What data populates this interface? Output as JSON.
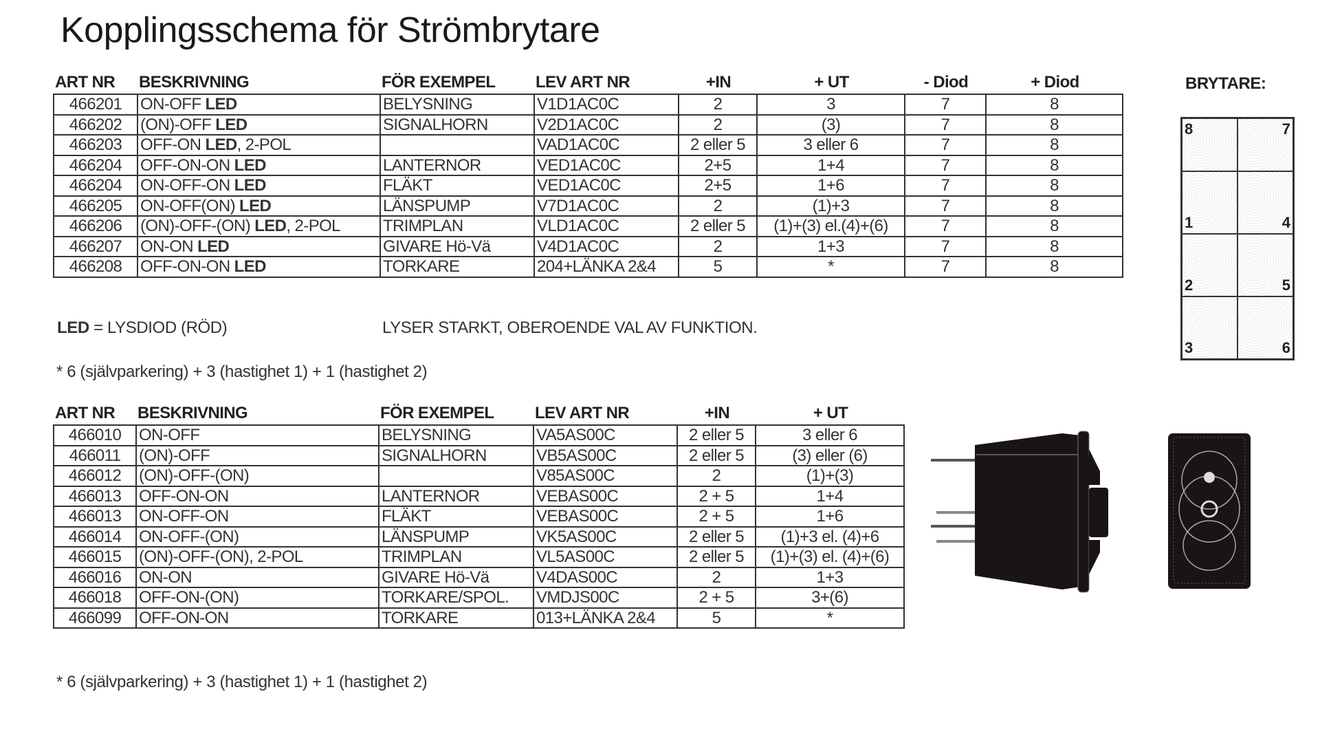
{
  "title": "Kopplingsschema för Strömbrytare",
  "table1": {
    "headers": [
      "ART NR",
      "BESKRIVNING",
      "FÖR EXEMPEL",
      "LEV ART NR",
      "+IN",
      "+ UT",
      "- Diod",
      "+ Diod"
    ],
    "rows": [
      {
        "art": "466201",
        "desc": "ON-OFF ",
        "bold": "LED",
        "suffix": "",
        "ex": "BELYSNING",
        "lev": "V1D1AC0C",
        "in": "2",
        "ut": "3",
        "dminus": "7",
        "dplus": "8"
      },
      {
        "art": "466202",
        "desc": "(ON)-OFF ",
        "bold": "LED",
        "suffix": "",
        "ex": "SIGNALHORN",
        "lev": "V2D1AC0C",
        "in": "2",
        "ut": "(3)",
        "dminus": "7",
        "dplus": "8"
      },
      {
        "art": "466203",
        "desc": "OFF-ON ",
        "bold": "LED",
        "suffix": ", 2-POL",
        "ex": "",
        "lev": "VAD1AC0C",
        "in": "2 eller 5",
        "ut": "3 eller 6",
        "dminus": "7",
        "dplus": "8"
      },
      {
        "art": "466204",
        "desc": "OFF-ON-ON ",
        "bold": "LED",
        "suffix": "",
        "ex": "LANTERNOR",
        "lev": "VED1AC0C",
        "in": "2+5",
        "ut": "1+4",
        "dminus": "7",
        "dplus": "8"
      },
      {
        "art": "466204",
        "desc": "ON-OFF-ON ",
        "bold": "LED",
        "suffix": "",
        "ex": "FLÄKT",
        "lev": "VED1AC0C",
        "in": "2+5",
        "ut": "1+6",
        "dminus": "7",
        "dplus": "8"
      },
      {
        "art": "466205",
        "desc": "ON-OFF(ON) ",
        "bold": "LED",
        "suffix": "",
        "ex": "LÄNSPUMP",
        "lev": "V7D1AC0C",
        "in": "2",
        "ut": "(1)+3",
        "dminus": "7",
        "dplus": "8"
      },
      {
        "art": "466206",
        "desc": "(ON)-OFF-(ON) ",
        "bold": "LED",
        "suffix": ", 2-POL",
        "ex": "TRIMPLAN",
        "lev": "VLD1AC0C",
        "in": "2 eller 5",
        "ut": "(1)+(3) el.(4)+(6)",
        "dminus": "7",
        "dplus": "8"
      },
      {
        "art": "466207",
        "desc": "ON-ON ",
        "bold": "LED",
        "suffix": "",
        "ex": "GIVARE Hö-Vä",
        "lev": "V4D1AC0C",
        "in": "2",
        "ut": "1+3",
        "dminus": "7",
        "dplus": "8"
      },
      {
        "art": "466208",
        "desc": "OFF-ON-ON ",
        "bold": "LED",
        "suffix": "",
        "ex": "TORKARE",
        "lev": "204+LÄNKA 2&4",
        "in": "5",
        "ut": "*",
        "dminus": "7",
        "dplus": "8"
      }
    ]
  },
  "notes": {
    "led_bold": "LED",
    "led_rest": " = LYSDIOD (RÖD)",
    "led_desc": "LYSER STARKT, OBEROENDE VAL AV FUNKTION.",
    "footnote1": "* 6 (självparkering) + 3 (hastighet 1) + 1 (hastighet 2)",
    "footnote2": "* 6 (självparkering) + 3 (hastighet 1) + 1 (hastighet 2)"
  },
  "brytare": {
    "label": "BRYTARE:",
    "pins": [
      [
        "8",
        "7"
      ],
      [
        "1",
        "4"
      ],
      [
        "2",
        "5"
      ],
      [
        "3",
        "6"
      ]
    ]
  },
  "table2": {
    "headers": [
      "ART NR",
      "BESKRIVNING",
      "FÖR EXEMPEL",
      "LEV ART NR",
      "+IN",
      "+ UT"
    ],
    "rows": [
      {
        "art": "466010",
        "desc": "ON-OFF",
        "ex": "BELYSNING",
        "lev": "VA5AS00C",
        "in": "2 eller 5",
        "ut": "3 eller 6"
      },
      {
        "art": "466011",
        "desc": "(ON)-OFF",
        "ex": "SIGNALHORN",
        "lev": "VB5AS00C",
        "in": "2 eller 5",
        "ut": "(3) eller (6)"
      },
      {
        "art": "466012",
        "desc": "(ON)-OFF-(ON)",
        "ex": "",
        "lev": "V85AS00C",
        "in": "2",
        "ut": "(1)+(3)"
      },
      {
        "art": "466013",
        "desc": "OFF-ON-ON",
        "ex": "LANTERNOR",
        "lev": "VEBAS00C",
        "in": "2 + 5",
        "ut": "1+4"
      },
      {
        "art": "466013",
        "desc": "ON-OFF-ON",
        "ex": "FLÄKT",
        "lev": "VEBAS00C",
        "in": "2 + 5",
        "ut": "1+6"
      },
      {
        "art": "466014",
        "desc": "ON-OFF-(ON)",
        "ex": "LÄNSPUMP",
        "lev": "VK5AS00C",
        "in": "2 eller 5",
        "ut": "(1)+3 el. (4)+6"
      },
      {
        "art": "466015",
        "desc": "(ON)-OFF-(ON), 2-POL",
        "ex": "TRIMPLAN",
        "lev": "VL5AS00C",
        "in": "2 eller 5",
        "ut": "(1)+(3) el. (4)+(6)"
      },
      {
        "art": "466016",
        "desc": "ON-ON",
        "ex": "GIVARE Hö-Vä",
        "lev": "V4DAS00C",
        "in": "2",
        "ut": "1+3"
      },
      {
        "art": "466018",
        "desc": "OFF-ON-(ON)",
        "ex": "TORKARE/SPOL.",
        "lev": "VMDJS00C",
        "in": "2 + 5",
        "ut": "3+(6)"
      },
      {
        "art": "466099",
        "desc": "OFF-ON-ON",
        "ex": "TORKARE",
        "lev": "013+LÄNKA 2&4",
        "in": "5",
        "ut": "*"
      }
    ]
  }
}
